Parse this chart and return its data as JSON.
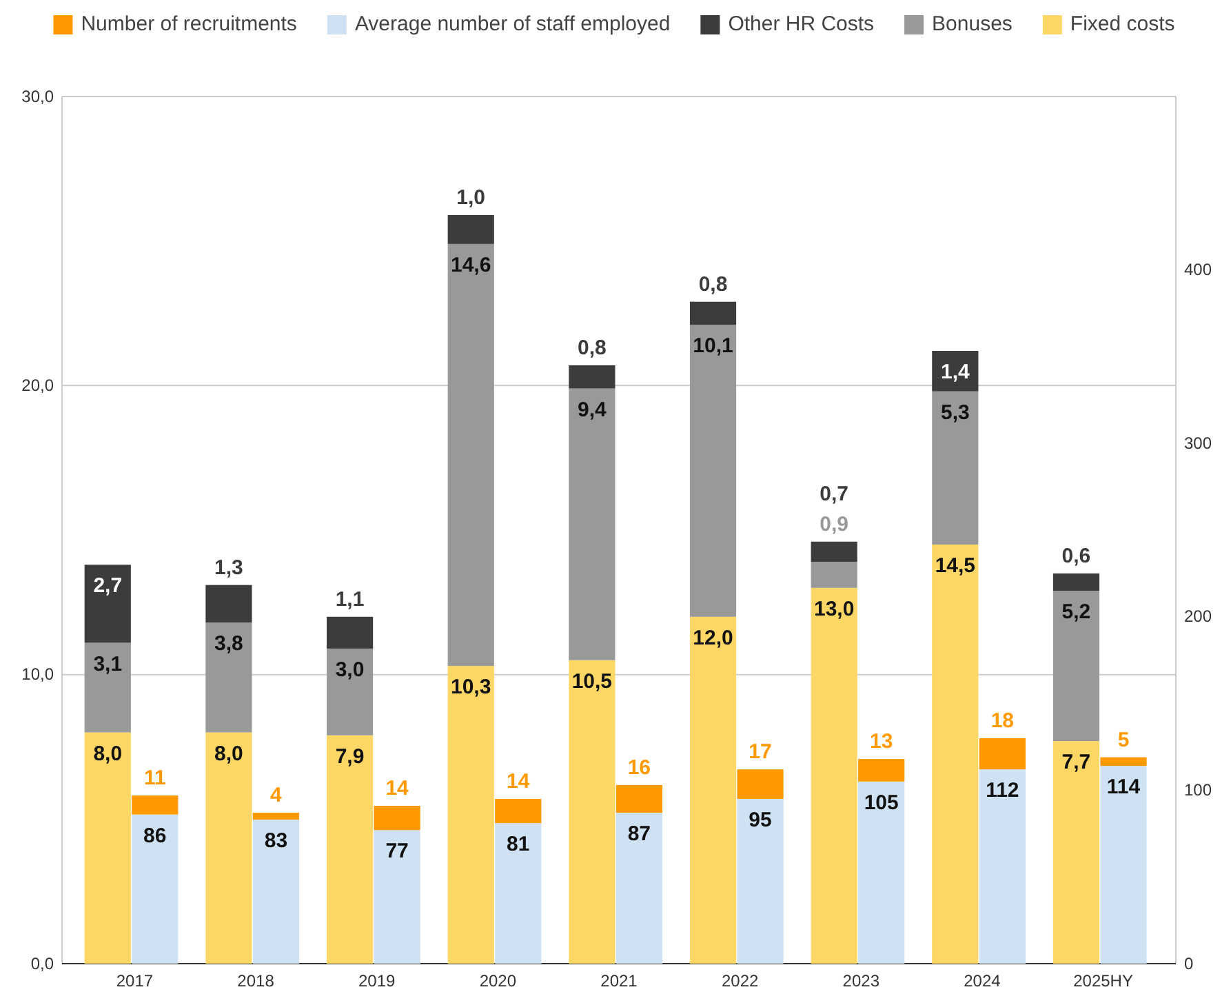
{
  "chart_data": {
    "type": "bar",
    "stacked": true,
    "categories": [
      "2017",
      "2018",
      "2019",
      "2020",
      "2021",
      "2022",
      "2023",
      "2024",
      "2025HY"
    ],
    "series": [
      {
        "name": "Fixed costs",
        "color": "#fdd766",
        "values": [
          8.0,
          8.0,
          7.9,
          10.3,
          10.5,
          12.0,
          13.0,
          14.5,
          7.7
        ],
        "value_labels": [
          "8,0",
          "8,0",
          "7,9",
          "10,3",
          "10,5",
          "12,0",
          "13,0",
          "14,5",
          "7,7"
        ]
      },
      {
        "name": "Bonuses",
        "color": "#999999",
        "values": [
          3.1,
          3.8,
          3.0,
          14.6,
          9.4,
          10.1,
          0.9,
          5.3,
          5.2
        ],
        "value_labels": [
          "3,1",
          "3,8",
          "3,0",
          "14,6",
          "9,4",
          "10,1",
          "0,9",
          "5,3",
          "5,2"
        ]
      },
      {
        "name": "Other HR Costs",
        "color": "#3c3c3c",
        "values": [
          2.7,
          1.3,
          1.1,
          1.0,
          0.8,
          0.8,
          0.7,
          1.4,
          0.6
        ],
        "value_labels": [
          "2,7",
          "1,3",
          "1,1",
          "1,0",
          "0,8",
          "0,8",
          "0,7",
          "1,4",
          "0,6"
        ]
      },
      {
        "name": "Average number of staff employed",
        "color": "#cfe2f3",
        "axis": "y2",
        "values": [
          86,
          83,
          77,
          81,
          87,
          95,
          105,
          112,
          114
        ],
        "value_labels": [
          "86",
          "83",
          "77",
          "81",
          "87",
          "95",
          "105",
          "112",
          "114"
        ]
      },
      {
        "name": "Number of recruitments",
        "color": "#ff9900",
        "axis": "y2",
        "values": [
          11,
          4,
          14,
          14,
          16,
          17,
          13,
          18,
          5
        ],
        "value_labels": [
          "11",
          "4",
          "14",
          "14",
          "16",
          "17",
          "13",
          "18",
          "5"
        ]
      }
    ],
    "ylim": [
      0,
      30
    ],
    "yticks": [
      {
        "value": 0,
        "label": "0,0"
      },
      {
        "value": 10,
        "label": "10,0"
      },
      {
        "value": 20,
        "label": "20,0"
      },
      {
        "value": 30,
        "label": "30,0"
      }
    ],
    "y2lim": [
      0,
      500
    ],
    "y2ticks": [
      0,
      100,
      200,
      300,
      400
    ],
    "grid": "y",
    "legend": "top"
  }
}
